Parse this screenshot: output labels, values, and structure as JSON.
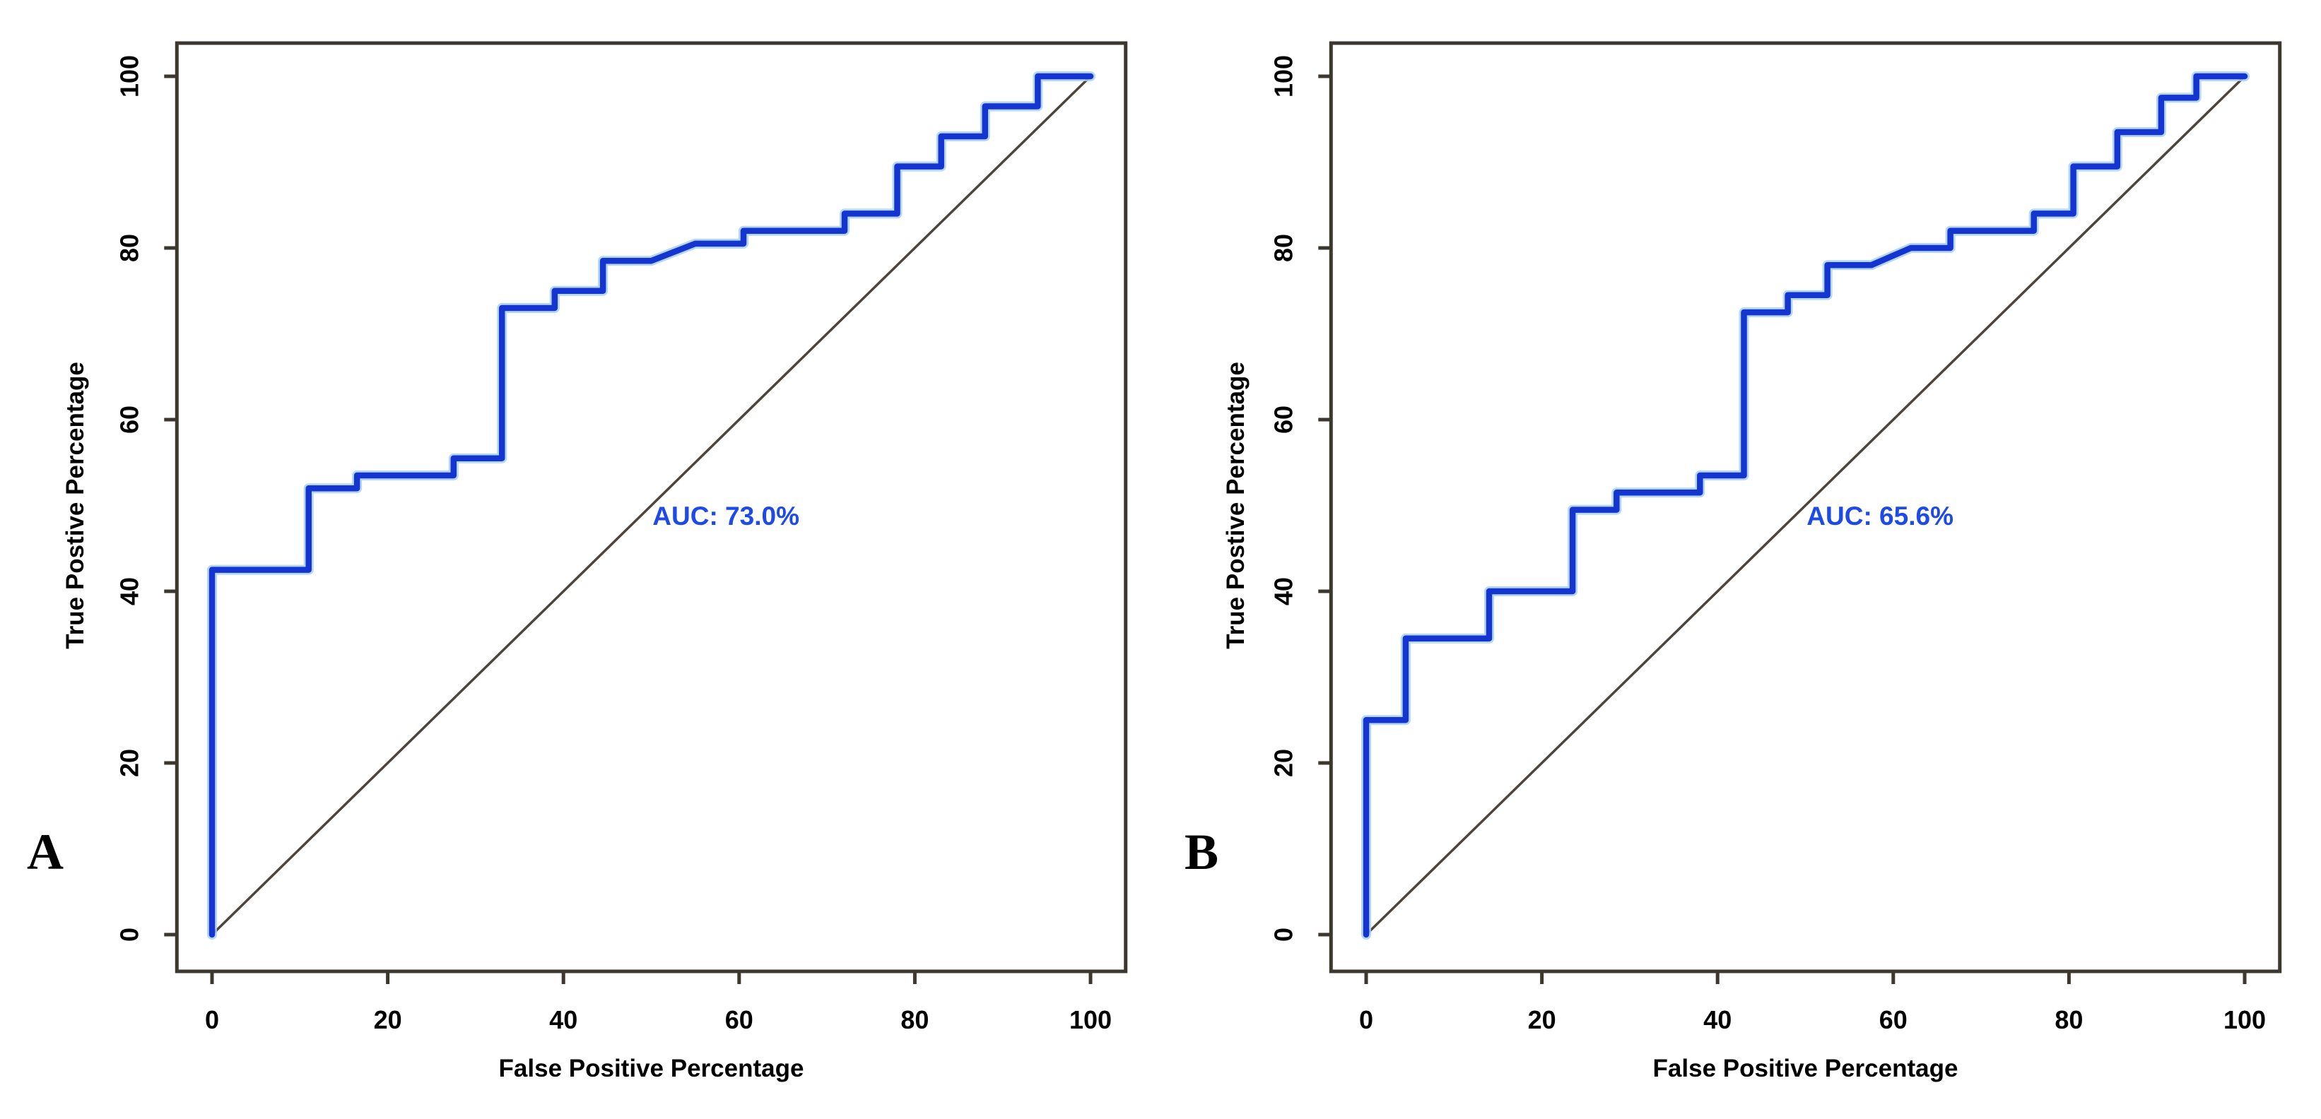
{
  "figure_title": "",
  "colors": {
    "background": "#ffffff",
    "curve": "#1535d0",
    "curve_glow": "#a6d0f2",
    "diagonal": "#4d443b",
    "axis": "#3c372f",
    "tick_text": "#000000",
    "auc_text": "#1d4ae8",
    "panel_letter": "#000000"
  },
  "chart_data": [
    {
      "type": "line",
      "panel_label": "A",
      "annotation": "AUC: 73.0%",
      "auc_percent": 73.0,
      "xlabel": "False Positive Percentage",
      "ylabel": "True Postive Percentage",
      "xlim": [
        0,
        100
      ],
      "ylim": [
        0,
        100
      ],
      "xticks": [
        0,
        20,
        40,
        60,
        80,
        100
      ],
      "yticks": [
        0,
        20,
        40,
        60,
        80,
        100
      ],
      "grid": false,
      "legend": "none",
      "series": [
        {
          "name": "ROC step curve",
          "style": "step",
          "points": [
            [
              0,
              0
            ],
            [
              0,
              42.5
            ],
            [
              11,
              42.5
            ],
            [
              11,
              52
            ],
            [
              16.5,
              52
            ],
            [
              16.5,
              53.5
            ],
            [
              27.5,
              53.5
            ],
            [
              27.5,
              55.5
            ],
            [
              33,
              55.5
            ],
            [
              33,
              73
            ],
            [
              39,
              73
            ],
            [
              39,
              75
            ],
            [
              44.5,
              75
            ],
            [
              44.5,
              78.5
            ],
            [
              50,
              78.5
            ],
            [
              55,
              80.5
            ],
            [
              60.5,
              80.5
            ],
            [
              60.5,
              82
            ],
            [
              72,
              82
            ],
            [
              72,
              84
            ],
            [
              78,
              84
            ],
            [
              78,
              89.5
            ],
            [
              83,
              89.5
            ],
            [
              83,
              93
            ],
            [
              88,
              93
            ],
            [
              88,
              96.5
            ],
            [
              94,
              96.5
            ],
            [
              94,
              100
            ],
            [
              100,
              100
            ]
          ]
        },
        {
          "name": "chance diagonal",
          "style": "reference-line",
          "points": [
            [
              0,
              0
            ],
            [
              100,
              100
            ]
          ]
        }
      ]
    },
    {
      "type": "line",
      "panel_label": "B",
      "annotation": "AUC: 65.6%",
      "auc_percent": 65.6,
      "xlabel": "False Positive Percentage",
      "ylabel": "True Postive Percentage",
      "xlim": [
        0,
        100
      ],
      "ylim": [
        0,
        100
      ],
      "xticks": [
        0,
        20,
        40,
        60,
        80,
        100
      ],
      "yticks": [
        0,
        20,
        40,
        60,
        80,
        100
      ],
      "grid": false,
      "legend": "none",
      "series": [
        {
          "name": "ROC step curve",
          "style": "step",
          "points": [
            [
              0,
              0
            ],
            [
              0,
              25
            ],
            [
              4.5,
              25
            ],
            [
              4.5,
              34.5
            ],
            [
              14,
              34.5
            ],
            [
              14,
              40
            ],
            [
              23.5,
              40
            ],
            [
              23.5,
              49.5
            ],
            [
              28.5,
              49.5
            ],
            [
              28.5,
              51.5
            ],
            [
              38,
              51.5
            ],
            [
              38,
              53.5
            ],
            [
              43,
              53.5
            ],
            [
              43,
              72.5
            ],
            [
              48,
              72.5
            ],
            [
              48,
              74.5
            ],
            [
              52.5,
              74.5
            ],
            [
              52.5,
              78
            ],
            [
              57.5,
              78
            ],
            [
              62,
              80
            ],
            [
              66.5,
              80
            ],
            [
              66.5,
              82
            ],
            [
              76,
              82
            ],
            [
              76,
              84
            ],
            [
              80.5,
              84
            ],
            [
              80.5,
              89.5
            ],
            [
              85.5,
              89.5
            ],
            [
              85.5,
              93.5
            ],
            [
              90.5,
              93.5
            ],
            [
              90.5,
              97.5
            ],
            [
              94.5,
              97.5
            ],
            [
              94.5,
              100
            ],
            [
              100,
              100
            ]
          ]
        },
        {
          "name": "chance diagonal",
          "style": "reference-line",
          "points": [
            [
              0,
              0
            ],
            [
              100,
              100
            ]
          ]
        }
      ]
    }
  ]
}
